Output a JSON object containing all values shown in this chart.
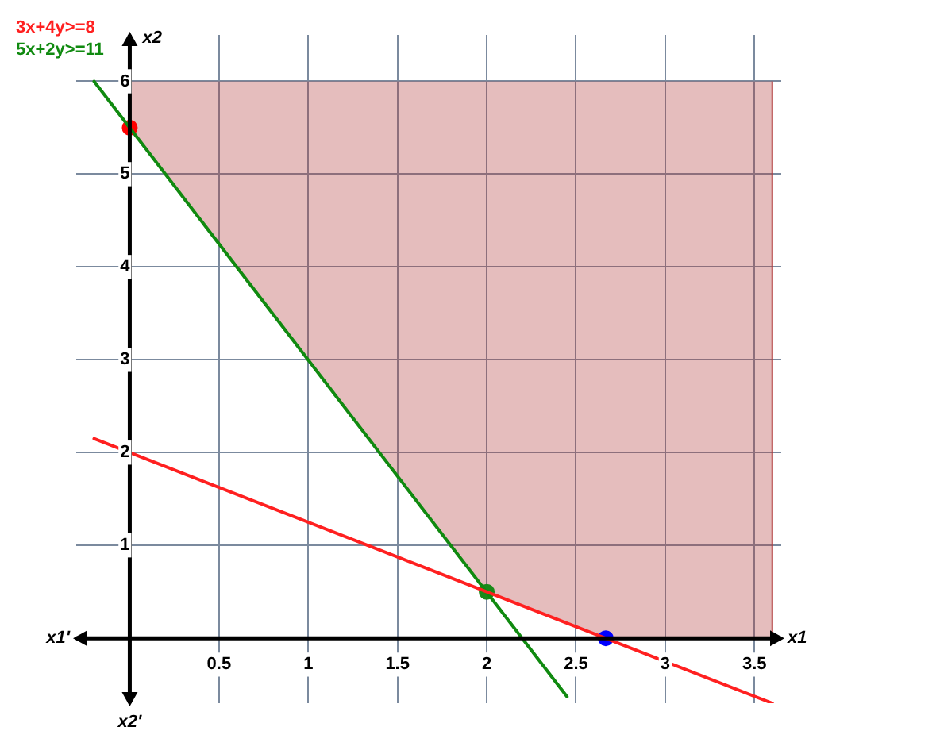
{
  "chart_data": {
    "type": "line",
    "series": [
      {
        "name": "3x+4y>=8",
        "color": "#ff2020",
        "x": [
          -0.2,
          3.6
        ],
        "values": [
          2.15,
          -0.7
        ]
      },
      {
        "name": "5x+2y>=11",
        "color": "#108a10",
        "x": [
          -0.2,
          2.45
        ],
        "values": [
          6.0,
          -0.63
        ]
      },
      {
        "type": "scatter",
        "marker": "circle",
        "colors": [
          "#ff0000",
          "#1a8a1a",
          "#0000ff"
        ],
        "x": [
          0,
          2,
          2.667
        ],
        "values": [
          5.5,
          0.5,
          0
        ]
      },
      {
        "type": "area",
        "color": "#b03a3a",
        "x": [
          0,
          0,
          2,
          2.667,
          3.6,
          3.6
        ],
        "values": [
          6,
          5.5,
          0.5,
          0,
          0,
          6
        ]
      }
    ],
    "xlim": [
      -0.3,
      3.65
    ],
    "ylim": [
      -0.7,
      6.5
    ],
    "xticks": [
      0.5,
      1,
      1.5,
      2,
      2.5,
      3,
      3.5
    ],
    "yticks": [
      1,
      2,
      3,
      4,
      5,
      6
    ],
    "grid": true,
    "legend": "top left",
    "marker": "none",
    "annotations": [
      "x1",
      "x1'",
      "x2",
      "x2'"
    ]
  }
}
